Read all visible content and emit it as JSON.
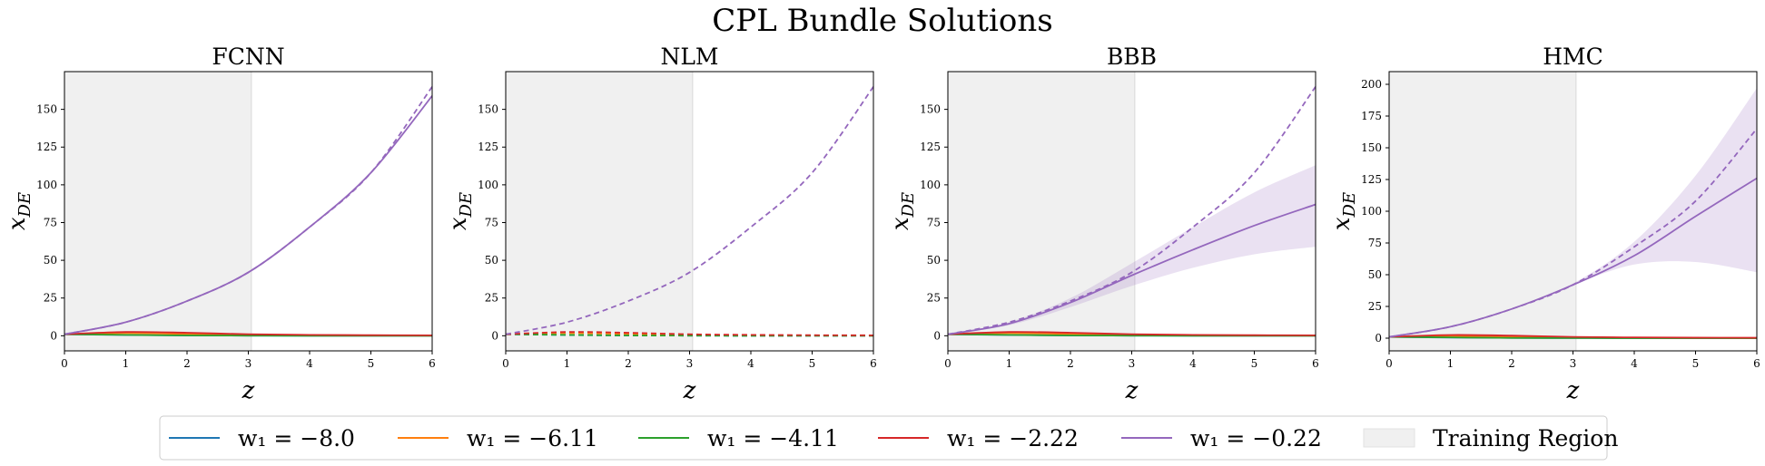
{
  "figure": {
    "title": "CPL Bundle Solutions"
  },
  "training_region_color": "#f0f0f0",
  "series_colors": {
    "w1_-8.0": "#1f77b4",
    "w1_-6.11": "#ff7f0e",
    "w1_-4.11": "#2ca02c",
    "w1_-2.22": "#d62728",
    "w1_-0.22": "#9467bd"
  },
  "legend": {
    "placement": "bottom-center",
    "items": [
      {
        "label": "w₁ = −8.0",
        "color": "#1f77b4",
        "kind": "line"
      },
      {
        "label": "w₁ = −6.11",
        "color": "#ff7f0e",
        "kind": "line"
      },
      {
        "label": "w₁ = −4.11",
        "color": "#2ca02c",
        "kind": "line"
      },
      {
        "label": "w₁ = −2.22",
        "color": "#d62728",
        "kind": "line"
      },
      {
        "label": "w₁ = −0.22",
        "color": "#9467bd",
        "kind": "line"
      },
      {
        "label": "Training Region",
        "color": "#f0f0f0",
        "kind": "patch"
      }
    ]
  },
  "chart_data": [
    {
      "type": "line",
      "title": "FCNN",
      "xlabel": "z",
      "ylabel": "x_DE",
      "xlim": [
        0,
        6
      ],
      "ylim": [
        -10,
        175
      ],
      "xticks": [
        0,
        1,
        2,
        3,
        4,
        5,
        6
      ],
      "yticks": [
        0,
        25,
        50,
        75,
        100,
        125,
        150
      ],
      "training_region": [
        0,
        3.05
      ],
      "grid": false,
      "x": [
        0,
        1,
        2,
        3,
        4,
        5,
        6
      ],
      "series": [
        {
          "name": "w₁ = −8.0",
          "color": "#1f77b4",
          "values": [
            1.0,
            0.5,
            0.2,
            0.1,
            0.0,
            0.0,
            0.0
          ]
        },
        {
          "name": "w₁ = −6.11",
          "color": "#ff7f0e",
          "values": [
            1.0,
            1.8,
            1.2,
            0.6,
            0.3,
            0.2,
            0.1
          ]
        },
        {
          "name": "w₁ = −4.11",
          "color": "#2ca02c",
          "values": [
            1.0,
            0.6,
            0.2,
            0.1,
            0.0,
            0.0,
            0.0
          ]
        },
        {
          "name": "w₁ = −2.22",
          "color": "#d62728",
          "values": [
            1.0,
            2.5,
            2.0,
            1.0,
            0.6,
            0.4,
            0.3
          ]
        },
        {
          "name": "w₁ = −0.22",
          "color": "#9467bd",
          "values": [
            1.0,
            9.0,
            23.0,
            42.0,
            72.0,
            108.0,
            159.0
          ]
        }
      ],
      "references": [
        {
          "name": "w₁ = −0.22",
          "color": "#9467bd",
          "style": "dashed",
          "values": [
            1.0,
            9.0,
            23.0,
            42.0,
            72.0,
            108.0,
            165.0
          ]
        }
      ]
    },
    {
      "type": "line",
      "title": "NLM",
      "xlabel": "z",
      "ylabel": "x_DE",
      "xlim": [
        0,
        6
      ],
      "ylim": [
        -10,
        175
      ],
      "xticks": [
        0,
        1,
        2,
        3,
        4,
        5,
        6
      ],
      "yticks": [
        0,
        25,
        50,
        75,
        100,
        125,
        150
      ],
      "training_region": [
        0,
        3.05
      ],
      "grid": false,
      "x": [
        0,
        1,
        2,
        3,
        4,
        5,
        6
      ],
      "series": [],
      "references": [
        {
          "name": "w₁ = −8.0",
          "color": "#1f77b4",
          "style": "dashed",
          "values": [
            1.0,
            0.5,
            0.2,
            0.1,
            0.0,
            0.0,
            0.0
          ]
        },
        {
          "name": "w₁ = −6.11",
          "color": "#ff7f0e",
          "style": "dashed",
          "values": [
            1.0,
            1.8,
            1.2,
            0.6,
            0.3,
            0.2,
            0.1
          ]
        },
        {
          "name": "w₁ = −4.11",
          "color": "#2ca02c",
          "style": "dashed",
          "values": [
            1.0,
            0.6,
            0.2,
            0.1,
            0.0,
            0.0,
            0.0
          ]
        },
        {
          "name": "w₁ = −2.22",
          "color": "#d62728",
          "style": "dashed",
          "values": [
            1.0,
            2.5,
            2.0,
            1.0,
            0.6,
            0.4,
            0.3
          ]
        },
        {
          "name": "w₁ = −0.22",
          "color": "#9467bd",
          "style": "dashed",
          "values": [
            1.0,
            9.0,
            23.0,
            42.0,
            72.0,
            108.0,
            165.0
          ]
        }
      ]
    },
    {
      "type": "line",
      "title": "BBB",
      "xlabel": "z",
      "ylabel": "x_DE",
      "xlim": [
        0,
        6
      ],
      "ylim": [
        -10,
        175
      ],
      "xticks": [
        0,
        1,
        2,
        3,
        4,
        5,
        6
      ],
      "yticks": [
        0,
        25,
        50,
        75,
        100,
        125,
        150
      ],
      "training_region": [
        0,
        3.05
      ],
      "grid": false,
      "x": [
        0,
        1,
        2,
        3,
        4,
        5,
        6
      ],
      "series": [
        {
          "name": "w₁ = −8.0",
          "color": "#1f77b4",
          "values": [
            1.0,
            0.5,
            0.2,
            0.1,
            0.0,
            0.0,
            0.0
          ]
        },
        {
          "name": "w₁ = −6.11",
          "color": "#ff7f0e",
          "values": [
            1.0,
            1.8,
            1.2,
            0.6,
            0.3,
            0.2,
            0.1
          ]
        },
        {
          "name": "w₁ = −4.11",
          "color": "#2ca02c",
          "values": [
            1.0,
            0.6,
            0.2,
            0.1,
            0.0,
            0.0,
            0.0
          ]
        },
        {
          "name": "w₁ = −2.22",
          "color": "#d62728",
          "values": [
            1.0,
            2.5,
            2.0,
            1.0,
            0.6,
            0.4,
            0.3
          ]
        },
        {
          "name": "w₁ = −0.22",
          "color": "#9467bd",
          "values": [
            1.0,
            8.0,
            22.0,
            40.0,
            57.0,
            73.0,
            87.0
          ],
          "band_lower": [
            1.0,
            7.0,
            19.0,
            33.0,
            45.0,
            54.0,
            59.0
          ],
          "band_upper": [
            1.0,
            9.0,
            25.0,
            48.0,
            72.0,
            95.0,
            113.0
          ]
        }
      ],
      "references": [
        {
          "name": "w₁ = −0.22",
          "color": "#9467bd",
          "style": "dashed",
          "values": [
            1.0,
            9.0,
            23.0,
            42.0,
            72.0,
            108.0,
            165.0
          ]
        }
      ]
    },
    {
      "type": "line",
      "title": "HMC",
      "xlabel": "z",
      "ylabel": "x_DE",
      "xlim": [
        0,
        6
      ],
      "ylim": [
        -10,
        210
      ],
      "xticks": [
        0,
        1,
        2,
        3,
        4,
        5,
        6
      ],
      "yticks": [
        0,
        25,
        50,
        75,
        100,
        125,
        150,
        175,
        200
      ],
      "training_region": [
        0,
        3.05
      ],
      "grid": false,
      "x": [
        0,
        1,
        2,
        3,
        4,
        5,
        6
      ],
      "series": [
        {
          "name": "w₁ = −8.0",
          "color": "#1f77b4",
          "values": [
            1.0,
            0.5,
            0.2,
            0.1,
            0.0,
            0.0,
            0.0
          ]
        },
        {
          "name": "w₁ = −6.11",
          "color": "#ff7f0e",
          "values": [
            1.0,
            1.8,
            1.2,
            0.6,
            0.3,
            0.2,
            0.1
          ]
        },
        {
          "name": "w₁ = −4.11",
          "color": "#2ca02c",
          "values": [
            1.0,
            0.6,
            0.2,
            0.1,
            0.0,
            0.0,
            0.0
          ]
        },
        {
          "name": "w₁ = −2.22",
          "color": "#d62728",
          "values": [
            1.0,
            2.5,
            2.0,
            1.0,
            0.6,
            0.4,
            0.3
          ]
        },
        {
          "name": "w₁ = −0.22",
          "color": "#9467bd",
          "values": [
            1.0,
            9.0,
            23.0,
            42.0,
            65.0,
            96.0,
            126.0
          ],
          "band_lower": [
            1.0,
            9.0,
            23.0,
            42.0,
            58.0,
            60.0,
            52.0
          ],
          "band_upper": [
            1.0,
            9.0,
            23.0,
            43.0,
            76.0,
            128.0,
            197.0
          ]
        }
      ],
      "references": [
        {
          "name": "w₁ = −0.22",
          "color": "#9467bd",
          "style": "dashed",
          "values": [
            1.0,
            9.0,
            23.0,
            42.0,
            72.0,
            108.0,
            165.0
          ]
        }
      ]
    }
  ]
}
